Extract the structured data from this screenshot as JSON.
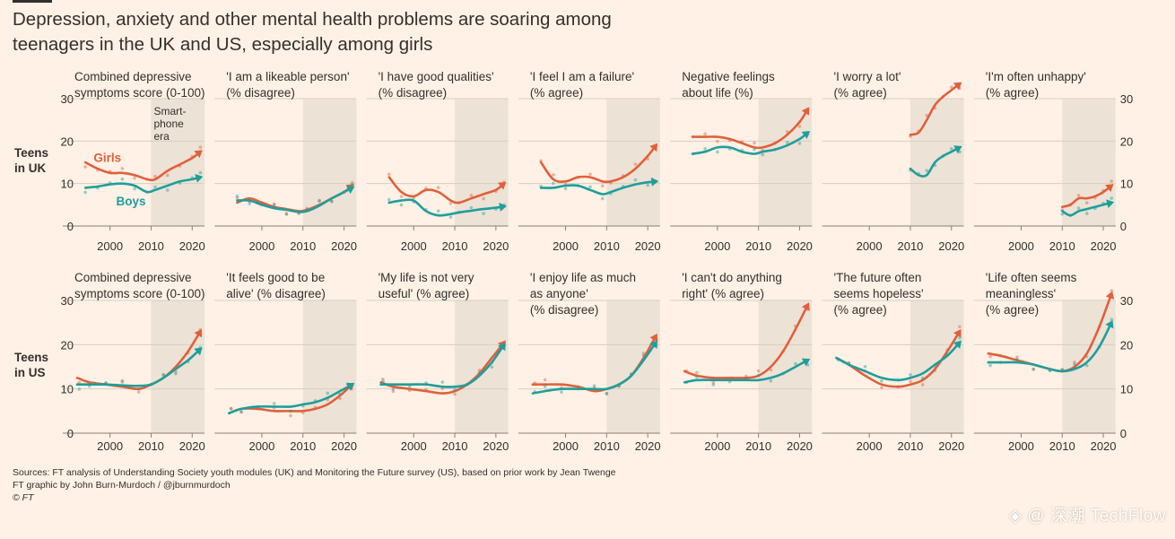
{
  "title": "Depression, anxiety and other mental health problems are soaring among teenagers in the UK and US, especially among girls",
  "rows": [
    {
      "label1": "Teens",
      "label2": "in UK"
    },
    {
      "label1": "Teens",
      "label2": "in US"
    }
  ],
  "colors": {
    "girls": "#e0603b",
    "boys": "#1f9e9b",
    "shade": "#ece2d6",
    "grid": "#d8cdc2",
    "bg": "#fff1e5"
  },
  "annotation": {
    "line1": "Smart-",
    "line2": "phone",
    "line3": "era"
  },
  "series_labels": {
    "girls": "Girls",
    "boys": "Boys"
  },
  "sources": "Sources: FT analysis of Understanding Society youth modules (UK) and Monitoring the Future survey (US), based on prior work by Jean Twenge",
  "credit": "FT graphic by John Burn-Murdoch / @jburnmurdoch",
  "copyright": "© FT",
  "watermark": "◈ @ 深潮 TechFlow",
  "chart_data": [
    {
      "type": "line",
      "row": 0,
      "title": [
        "Combined depressive",
        "symptoms score (0-100)"
      ],
      "xlim": [
        1992,
        2023
      ],
      "ylim": [
        0,
        30
      ],
      "yticks": [
        0,
        10,
        20,
        30
      ],
      "xticks": [
        2000,
        2010,
        2020
      ],
      "shade_from": 2010,
      "series": [
        {
          "name": "Girls",
          "x": [
            1994,
            1997,
            2000,
            2003,
            2006,
            2009,
            2011,
            2014,
            2017,
            2020,
            2022
          ],
          "y": [
            15,
            13.5,
            12.5,
            12.5,
            12,
            11,
            11,
            13,
            14.5,
            16,
            17.5
          ]
        },
        {
          "name": "Boys",
          "x": [
            1994,
            1997,
            2000,
            2003,
            2006,
            2009,
            2011,
            2014,
            2017,
            2020,
            2022
          ],
          "y": [
            9,
            9.3,
            9.8,
            10,
            9.5,
            8,
            8.5,
            9.5,
            10.5,
            11,
            11.5
          ]
        }
      ]
    },
    {
      "type": "line",
      "row": 0,
      "title": [
        "'I am a likeable person'",
        "(% disagree)"
      ],
      "xlim": [
        1992,
        2023
      ],
      "ylim": [
        0,
        30
      ],
      "yticks": [
        0,
        10,
        20,
        30
      ],
      "xticks": [
        2000,
        2010,
        2020
      ],
      "shade_from": 2010,
      "series": [
        {
          "name": "Girls",
          "x": [
            1994,
            1997,
            2000,
            2003,
            2006,
            2009,
            2011,
            2014,
            2017,
            2020,
            2022
          ],
          "y": [
            5.5,
            6.5,
            5.5,
            4.5,
            4,
            3.5,
            3.8,
            5,
            6.5,
            8,
            9.5
          ]
        },
        {
          "name": "Boys",
          "x": [
            1994,
            1997,
            2000,
            2003,
            2006,
            2009,
            2011,
            2014,
            2017,
            2020,
            2022
          ],
          "y": [
            6,
            6,
            5,
            4.2,
            3.8,
            3.3,
            3.5,
            4.8,
            6.5,
            8,
            9
          ]
        }
      ]
    },
    {
      "type": "line",
      "row": 0,
      "title": [
        "'I have good qualities'",
        "(% disagree)"
      ],
      "xlim": [
        1992,
        2023
      ],
      "ylim": [
        0,
        30
      ],
      "yticks": [
        0,
        10,
        20,
        30
      ],
      "xticks": [
        2000,
        2010,
        2020
      ],
      "shade_from": 2010,
      "series": [
        {
          "name": "Girls",
          "x": [
            1994,
            1997,
            2000,
            2003,
            2006,
            2009,
            2011,
            2014,
            2017,
            2020,
            2022
          ],
          "y": [
            11.5,
            8,
            7,
            8.5,
            8,
            6,
            5.5,
            6.5,
            7.5,
            8.5,
            10
          ]
        },
        {
          "name": "Boys",
          "x": [
            1994,
            1997,
            2000,
            2003,
            2006,
            2009,
            2011,
            2014,
            2017,
            2020,
            2022
          ],
          "y": [
            5.5,
            6,
            6,
            3.5,
            2.5,
            2.8,
            3.2,
            3.6,
            4,
            4.3,
            4.6
          ]
        }
      ]
    },
    {
      "type": "line",
      "row": 0,
      "title": [
        "'I feel I am a failure'",
        "(% agree)"
      ],
      "xlim": [
        1992,
        2023
      ],
      "ylim": [
        0,
        30
      ],
      "yticks": [
        0,
        10,
        20,
        30
      ],
      "xticks": [
        2000,
        2010,
        2020
      ],
      "shade_from": 2010,
      "series": [
        {
          "name": "Girls",
          "x": [
            1994,
            1997,
            2000,
            2003,
            2006,
            2009,
            2011,
            2014,
            2017,
            2020,
            2022
          ],
          "y": [
            15,
            11,
            10.5,
            11.5,
            11.5,
            10.5,
            10.5,
            11.5,
            13.5,
            16.5,
            19
          ]
        },
        {
          "name": "Boys",
          "x": [
            1994,
            1997,
            2000,
            2003,
            2006,
            2009,
            2011,
            2014,
            2017,
            2020,
            2022
          ],
          "y": [
            9,
            9,
            9.5,
            9.5,
            8.5,
            7.5,
            8,
            9,
            9.8,
            10.3,
            10.5
          ]
        }
      ]
    },
    {
      "type": "line",
      "row": 0,
      "title": [
        "Negative feelings",
        "about life (%)"
      ],
      "xlim": [
        1992,
        2023
      ],
      "ylim": [
        0,
        30
      ],
      "yticks": [
        0,
        10,
        20,
        30
      ],
      "xticks": [
        2000,
        2010,
        2020
      ],
      "shade_from": 2010,
      "series": [
        {
          "name": "Girls",
          "x": [
            1994,
            1997,
            2000,
            2003,
            2006,
            2009,
            2011,
            2014,
            2017,
            2020,
            2022
          ],
          "y": [
            21,
            21,
            21,
            20.5,
            19.5,
            18.5,
            18.5,
            19.5,
            21.5,
            24.5,
            27.5
          ]
        },
        {
          "name": "Boys",
          "x": [
            1994,
            1997,
            2000,
            2003,
            2006,
            2009,
            2011,
            2014,
            2017,
            2020,
            2022
          ],
          "y": [
            17,
            17.5,
            18.5,
            18.5,
            17.5,
            17,
            17.5,
            18,
            19,
            20.5,
            22
          ]
        }
      ]
    },
    {
      "type": "line",
      "row": 0,
      "title": [
        "'I worry a lot'",
        "(% agree)"
      ],
      "xlim": [
        1992,
        2023
      ],
      "ylim": [
        0,
        30
      ],
      "yticks": [
        0,
        10,
        20,
        30
      ],
      "xticks": [
        2000,
        2010,
        2020
      ],
      "shade_from": 2010,
      "series": [
        {
          "name": "Girls",
          "x": [
            2010,
            2012,
            2014,
            2016,
            2018,
            2020,
            2022
          ],
          "y": [
            21.5,
            22,
            25,
            28.5,
            30.5,
            32,
            33.5
          ]
        },
        {
          "name": "Boys",
          "x": [
            2010,
            2012,
            2014,
            2016,
            2018,
            2020,
            2022
          ],
          "y": [
            13.5,
            12,
            12,
            15,
            16.5,
            17.5,
            18.5
          ]
        }
      ]
    },
    {
      "type": "line",
      "row": 0,
      "title": [
        "'I'm often unhappy'",
        "(% agree)"
      ],
      "xlim": [
        1992,
        2023
      ],
      "ylim": [
        0,
        30
      ],
      "yticks": [
        0,
        10,
        20,
        30
      ],
      "xticks": [
        2000,
        2010,
        2020
      ],
      "shade_from": 2010,
      "yaxis_right": true,
      "series": [
        {
          "name": "Girls",
          "x": [
            2010,
            2012,
            2014,
            2016,
            2018,
            2020,
            2022
          ],
          "y": [
            4.5,
            5,
            6.5,
            6.5,
            7,
            8,
            9.5
          ]
        },
        {
          "name": "Boys",
          "x": [
            2010,
            2012,
            2014,
            2016,
            2018,
            2020,
            2022
          ],
          "y": [
            3.5,
            2.5,
            3.5,
            4,
            4.5,
            5,
            5.5
          ]
        }
      ]
    },
    {
      "type": "line",
      "row": 1,
      "title": [
        "Combined depressive",
        "symptoms score (0-100)"
      ],
      "xlim": [
        1992,
        2023
      ],
      "ylim": [
        0,
        30
      ],
      "yticks": [
        0,
        10,
        20,
        30
      ],
      "xticks": [
        2000,
        2010,
        2020
      ],
      "shade_from": 2010,
      "series": [
        {
          "name": "Girls",
          "x": [
            1991,
            1995,
            1999,
            2003,
            2007,
            2010,
            2013,
            2016,
            2019,
            2022
          ],
          "y": [
            12.5,
            11.5,
            11,
            10.5,
            10,
            11,
            12.5,
            15,
            18.5,
            23
          ]
        },
        {
          "name": "Boys",
          "x": [
            1991,
            1995,
            1999,
            2003,
            2007,
            2010,
            2013,
            2016,
            2019,
            2022
          ],
          "y": [
            11,
            11,
            11,
            10.8,
            10.7,
            11,
            12.5,
            14.5,
            16.5,
            19
          ]
        }
      ]
    },
    {
      "type": "line",
      "row": 1,
      "title": [
        "'It feels good to be",
        "alive' (% disagree)"
      ],
      "xlim": [
        1992,
        2023
      ],
      "ylim": [
        0,
        30
      ],
      "yticks": [
        0,
        10,
        20,
        30
      ],
      "xticks": [
        2000,
        2010,
        2020
      ],
      "shade_from": 2010,
      "series": [
        {
          "name": "Girls",
          "x": [
            1991,
            1995,
            1999,
            2003,
            2007,
            2010,
            2013,
            2016,
            2019,
            2022
          ],
          "y": [
            4.5,
            5.5,
            5.5,
            5,
            5,
            5,
            5.5,
            6.5,
            8.5,
            11
          ]
        },
        {
          "name": "Boys",
          "x": [
            1991,
            1995,
            1999,
            2003,
            2007,
            2010,
            2013,
            2016,
            2019,
            2022
          ],
          "y": [
            4.5,
            5.5,
            6,
            6,
            6,
            6.5,
            7,
            8,
            9.5,
            11
          ]
        }
      ]
    },
    {
      "type": "line",
      "row": 1,
      "title": [
        "'My life is not very",
        "useful' (% agree)"
      ],
      "xlim": [
        1992,
        2023
      ],
      "ylim": [
        0,
        30
      ],
      "yticks": [
        0,
        10,
        20,
        30
      ],
      "xticks": [
        2000,
        2010,
        2020
      ],
      "shade_from": 2010,
      "series": [
        {
          "name": "Girls",
          "x": [
            1991,
            1995,
            1999,
            2003,
            2007,
            2010,
            2013,
            2016,
            2019,
            2022
          ],
          "y": [
            11.5,
            10.5,
            10,
            9.5,
            9,
            9.5,
            11,
            13.5,
            17,
            20.5
          ]
        },
        {
          "name": "Boys",
          "x": [
            1991,
            1995,
            1999,
            2003,
            2007,
            2010,
            2013,
            2016,
            2019,
            2022
          ],
          "y": [
            11,
            11,
            11,
            11,
            10.5,
            10.5,
            11,
            13,
            16,
            20
          ]
        }
      ]
    },
    {
      "type": "line",
      "row": 1,
      "title": [
        "'I enjoy life as much",
        "as anyone'",
        "(% disagree)"
      ],
      "xlim": [
        1992,
        2023
      ],
      "ylim": [
        0,
        30
      ],
      "yticks": [
        0,
        10,
        20,
        30
      ],
      "xticks": [
        2000,
        2010,
        2020
      ],
      "shade_from": 2010,
      "series": [
        {
          "name": "Girls",
          "x": [
            1991,
            1995,
            1999,
            2003,
            2007,
            2010,
            2013,
            2016,
            2019,
            2022
          ],
          "y": [
            11,
            11,
            11,
            10.5,
            9.5,
            10,
            11,
            13,
            17,
            22
          ]
        },
        {
          "name": "Boys",
          "x": [
            1991,
            1995,
            1999,
            2003,
            2007,
            2010,
            2013,
            2016,
            2019,
            2022
          ],
          "y": [
            9,
            9.5,
            10,
            10,
            10,
            10,
            11,
            13,
            16.5,
            20.5
          ]
        }
      ]
    },
    {
      "type": "line",
      "row": 1,
      "title": [
        "'I can't do anything",
        "right' (% agree)"
      ],
      "xlim": [
        1992,
        2023
      ],
      "ylim": [
        0,
        30
      ],
      "yticks": [
        0,
        10,
        20,
        30
      ],
      "xticks": [
        2000,
        2010,
        2020
      ],
      "shade_from": 2010,
      "series": [
        {
          "name": "Girls",
          "x": [
            1991,
            1995,
            1999,
            2003,
            2007,
            2010,
            2013,
            2016,
            2019,
            2022
          ],
          "y": [
            14,
            13,
            12.5,
            12.5,
            12.5,
            13,
            15,
            18.5,
            23.5,
            29
          ]
        },
        {
          "name": "Boys",
          "x": [
            1991,
            1995,
            1999,
            2003,
            2007,
            2010,
            2013,
            2016,
            2019,
            2022
          ],
          "y": [
            11.5,
            12,
            12,
            12,
            12,
            12,
            12.5,
            13.5,
            15,
            16.5
          ]
        }
      ]
    },
    {
      "type": "line",
      "row": 1,
      "title": [
        "'The future often",
        "seems hopeless'",
        "(% agree)"
      ],
      "xlim": [
        1992,
        2023
      ],
      "ylim": [
        0,
        30
      ],
      "yticks": [
        0,
        10,
        20,
        30
      ],
      "xticks": [
        2000,
        2010,
        2020
      ],
      "shade_from": 2010,
      "series": [
        {
          "name": "Girls",
          "x": [
            1991,
            1995,
            1999,
            2003,
            2007,
            2010,
            2013,
            2016,
            2019,
            2022
          ],
          "y": [
            17,
            15.5,
            13,
            11,
            10.5,
            11,
            12,
            14.5,
            18.5,
            23
          ]
        },
        {
          "name": "Boys",
          "x": [
            1991,
            1995,
            1999,
            2003,
            2007,
            2010,
            2013,
            2016,
            2019,
            2022
          ],
          "y": [
            17,
            15.5,
            14,
            12.5,
            12,
            12.5,
            13.5,
            15.5,
            17.5,
            20.5
          ]
        }
      ]
    },
    {
      "type": "line",
      "row": 1,
      "title": [
        "'Life often seems",
        "meaningless'",
        "(% agree)"
      ],
      "xlim": [
        1992,
        2023
      ],
      "ylim": [
        0,
        30
      ],
      "yticks": [
        0,
        10,
        20,
        30
      ],
      "xticks": [
        2000,
        2010,
        2020
      ],
      "shade_from": 2010,
      "yaxis_right": true,
      "series": [
        {
          "name": "Girls",
          "x": [
            1991,
            1995,
            1999,
            2003,
            2007,
            2010,
            2013,
            2016,
            2019,
            2022
          ],
          "y": [
            18,
            17.5,
            16.5,
            15.5,
            14.5,
            14,
            15,
            18,
            24,
            31.5
          ]
        },
        {
          "name": "Boys",
          "x": [
            1991,
            1995,
            1999,
            2003,
            2007,
            2010,
            2013,
            2016,
            2019,
            2022
          ],
          "y": [
            16,
            16,
            16,
            15.5,
            14.5,
            14,
            14.5,
            16,
            19.5,
            25
          ]
        }
      ]
    }
  ]
}
